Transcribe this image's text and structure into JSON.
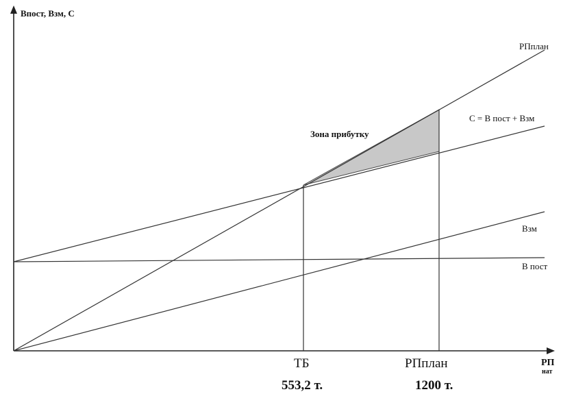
{
  "chart_data": {
    "type": "line",
    "y_axis_label": "Впост, Взм, С",
    "x_axis_label": {
      "main": "РП",
      "sub": "нат"
    },
    "lines": [
      {
        "name": "РПплан"
      },
      {
        "name": "С = В пост + Взм"
      },
      {
        "name": "Взм"
      },
      {
        "name": "В пост"
      }
    ],
    "zone_label": "Зона прибутку",
    "marks": [
      {
        "label": "ТБ",
        "value": "553,2 т."
      },
      {
        "label": "РПплан",
        "value": "1200 т."
      }
    ]
  },
  "colors": {
    "line": "#333333",
    "zone_fill": "#c8c8c8",
    "text": "#111111"
  }
}
